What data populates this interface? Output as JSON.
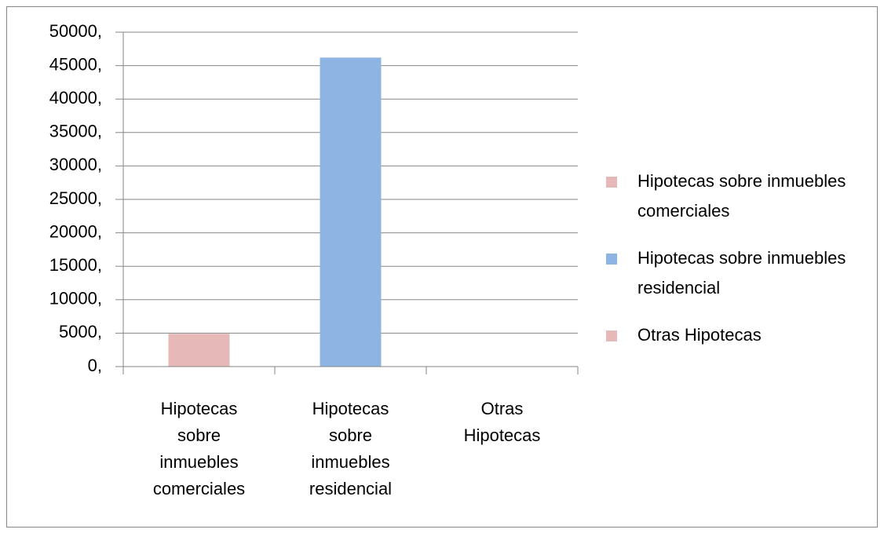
{
  "chart_data": {
    "type": "bar",
    "categories": [
      "Hipotecas sobre inmuebles comerciales",
      "Hipotecas sobre inmuebles residencial",
      "Otras Hipotecas"
    ],
    "values": [
      4900,
      46200,
      0
    ],
    "colors": [
      "#e6b9b8",
      "#8eb4e3",
      "#e6b9b8"
    ],
    "ylim": [
      0,
      50000
    ],
    "yticks": [
      {
        "value": 0,
        "label": "0,"
      },
      {
        "value": 5000,
        "label": "5000,"
      },
      {
        "value": 10000,
        "label": "10000,"
      },
      {
        "value": 15000,
        "label": "15000,"
      },
      {
        "value": 20000,
        "label": "20000,"
      },
      {
        "value": 25000,
        "label": "25000,"
      },
      {
        "value": 30000,
        "label": "30000,"
      },
      {
        "value": 35000,
        "label": "35000,"
      },
      {
        "value": 40000,
        "label": "40000,"
      },
      {
        "value": 45000,
        "label": "45000,"
      },
      {
        "value": 50000,
        "label": "50000,"
      }
    ],
    "grid": true,
    "legend": "right"
  }
}
